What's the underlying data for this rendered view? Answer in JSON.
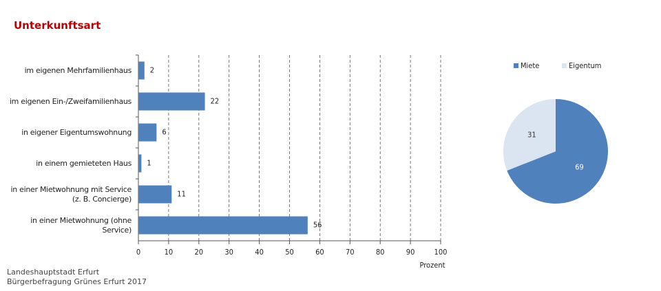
{
  "title": "Unterkunftsart",
  "source": [
    "Landeshauptstadt Erfurt",
    "Bürgerbefragung Grünes Erfurt 2017"
  ],
  "chart_data": [
    {
      "type": "hbar",
      "categories": [
        "im eigenen Mehrfamilienhaus",
        "im eigenen Ein-/Zweifamilienhaus",
        "in eigener Eigentumswohnung",
        "in einem gemieteten Haus",
        "in einer Mietwohnung mit Service\n(z. B. Concierge)",
        "in einer Mietwohnung (ohne Service)"
      ],
      "values": [
        2,
        22,
        6,
        1,
        11,
        56
      ],
      "color": "#4f81bd",
      "xlabel": "Prozent",
      "xlim": [
        0,
        100
      ],
      "xticks": [
        0,
        10,
        20,
        30,
        40,
        50,
        60,
        70,
        80,
        90,
        100
      ],
      "grid": true
    },
    {
      "type": "pie",
      "categories": [
        "Miete",
        "Eigentum"
      ],
      "values": [
        69,
        31
      ],
      "colors": [
        "#4f81bd",
        "#dbe5f1"
      ],
      "label_colors": [
        "#ffffff",
        "#333333"
      ]
    }
  ]
}
